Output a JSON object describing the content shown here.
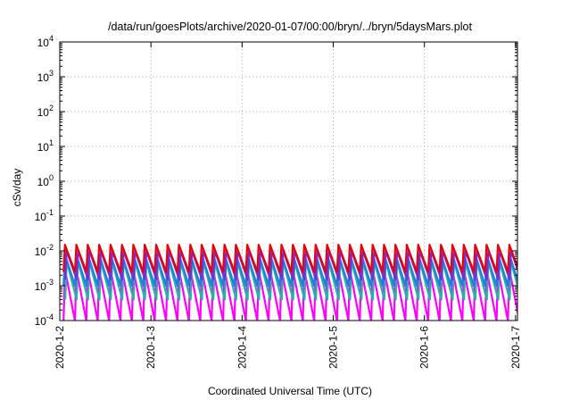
{
  "chart_data": {
    "type": "line",
    "title": "/data/run/goesPlots/archive/2020-01-07/00:00/bryn/../bryn/5daysMars.plot",
    "xlabel": "Coordinated Universal Time (UTC)",
    "ylabel": "cSv/day",
    "scale_y": "log",
    "ylim": [
      0.0001,
      10000
    ],
    "xlim": [
      "2020-01-02",
      "2020-01-07 00:30"
    ],
    "x_ticks": [
      "2020-1-2",
      "2020-1-3",
      "2020-1-4",
      "2020-1-5",
      "2020-1-6",
      "2020-1-7"
    ],
    "y_ticks": [
      {
        "base": "10",
        "exp": "-4"
      },
      {
        "base": "10",
        "exp": "-3"
      },
      {
        "base": "10",
        "exp": "-2"
      },
      {
        "base": "10",
        "exp": "-1"
      },
      {
        "base": "10",
        "exp": "0"
      },
      {
        "base": "10",
        "exp": "1"
      },
      {
        "base": "10",
        "exp": "2"
      },
      {
        "base": "10",
        "exp": "3"
      },
      {
        "base": "10",
        "exp": "4"
      }
    ],
    "grid": true,
    "legend": "none",
    "pattern": {
      "description_free": true,
      "period_hours": 3,
      "start": "2020-01-02 01:00"
    },
    "series": [
      {
        "color": "#e8000b",
        "peak": 0.015,
        "trough": 0.0025
      },
      {
        "color": "#7b2bd6",
        "peak": 0.01,
        "trough": 0.0015
      },
      {
        "color": "#1f7fe0",
        "peak": 0.008,
        "trough": 0.001
      },
      {
        "color": "#2bb0a8",
        "peak": 0.005,
        "trough": 0.0004
      },
      {
        "color": "#ff00ff",
        "peak": 0.003,
        "trough": 0.0001
      }
    ]
  }
}
